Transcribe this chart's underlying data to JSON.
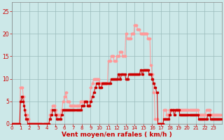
{
  "xlabel": "Vent moyen/en rafales ( km/h )",
  "bg_color": "#cce8e8",
  "grid_color": "#99bbbb",
  "ylim": [
    0,
    27
  ],
  "xlim": [
    0,
    287
  ],
  "yticks": [
    0,
    5,
    10,
    15,
    20,
    25
  ],
  "xtick_positions": [
    0,
    12,
    24,
    36,
    48,
    60,
    72,
    84,
    96,
    108,
    120,
    132,
    144,
    156,
    168,
    180,
    192,
    204,
    216,
    228,
    240,
    252,
    264,
    276
  ],
  "xtick_labels": [
    "0",
    "1",
    "2",
    "3",
    "4",
    "5",
    "6",
    "7",
    "8",
    "9",
    "10",
    "11",
    "12",
    "13",
    "14",
    "15",
    "16",
    "17",
    "18",
    "19",
    "20",
    "21",
    "22",
    "23"
  ],
  "moyen_color": "#cc0000",
  "rafales_color": "#ff9999",
  "moyen": [
    0,
    0,
    0,
    0,
    0,
    0,
    0,
    0,
    0,
    0,
    0,
    0,
    5,
    5,
    6,
    6,
    5,
    4,
    3,
    2,
    1,
    1,
    0,
    0,
    0,
    0,
    0,
    0,
    0,
    0,
    0,
    0,
    0,
    0,
    0,
    0,
    0,
    0,
    0,
    0,
    0,
    0,
    0,
    0,
    0,
    0,
    0,
    0,
    0,
    0,
    0,
    0,
    1,
    1,
    2,
    2,
    3,
    3,
    3,
    3,
    2,
    2,
    1,
    1,
    1,
    1,
    1,
    1,
    2,
    2,
    3,
    3,
    3,
    3,
    3,
    3,
    3,
    3,
    3,
    3,
    3,
    3,
    3,
    3,
    3,
    3,
    3,
    3,
    3,
    3,
    3,
    3,
    3,
    3,
    3,
    3,
    4,
    4,
    4,
    4,
    5,
    5,
    5,
    5,
    4,
    4,
    4,
    4,
    5,
    5,
    6,
    6,
    7,
    7,
    8,
    8,
    9,
    9,
    9,
    9,
    8,
    8,
    8,
    8,
    9,
    9,
    9,
    9,
    9,
    9,
    9,
    9,
    9,
    9,
    9,
    9,
    10,
    10,
    10,
    10,
    10,
    10,
    10,
    10,
    10,
    10,
    11,
    11,
    10,
    10,
    11,
    11,
    11,
    11,
    11,
    11,
    10,
    10,
    10,
    10,
    11,
    11,
    11,
    11,
    11,
    11,
    11,
    11,
    11,
    11,
    11,
    11,
    11,
    11,
    11,
    11,
    12,
    12,
    11,
    11,
    12,
    12,
    12,
    12,
    12,
    12,
    12,
    12,
    11,
    11,
    11,
    11,
    10,
    10,
    9,
    9,
    8,
    8,
    7,
    7,
    0,
    0,
    0,
    0,
    0,
    0,
    0,
    0,
    1,
    1,
    1,
    1,
    1,
    1,
    1,
    1,
    2,
    2,
    3,
    3,
    3,
    3,
    2,
    2,
    3,
    3,
    3,
    3,
    3,
    3,
    2,
    2,
    2,
    2,
    2,
    2,
    2,
    2,
    2,
    2,
    2,
    2,
    2,
    2,
    2,
    2,
    2,
    2,
    2,
    2,
    2,
    2,
    2,
    2,
    2,
    2,
    1,
    1,
    1,
    1,
    1,
    1,
    1,
    1,
    1,
    1,
    1,
    1,
    2,
    2,
    2,
    2,
    1,
    1,
    1,
    1,
    1,
    1,
    1,
    1,
    1,
    1,
    1,
    1,
    1,
    1,
    1,
    1
  ],
  "rafales": [
    0,
    0,
    0,
    0,
    0,
    0,
    0,
    0,
    0,
    0,
    0,
    0,
    8,
    8,
    8,
    8,
    6,
    6,
    3,
    3,
    2,
    2,
    1,
    1,
    0,
    0,
    0,
    0,
    0,
    0,
    0,
    0,
    0,
    0,
    0,
    0,
    0,
    0,
    0,
    0,
    0,
    0,
    0,
    0,
    0,
    0,
    0,
    0,
    0,
    0,
    0,
    0,
    2,
    2,
    3,
    3,
    4,
    4,
    4,
    4,
    3,
    3,
    2,
    2,
    2,
    2,
    2,
    2,
    3,
    3,
    5,
    5,
    6,
    6,
    7,
    7,
    5,
    5,
    5,
    5,
    4,
    4,
    4,
    4,
    4,
    4,
    4,
    4,
    4,
    4,
    4,
    4,
    4,
    4,
    5,
    5,
    5,
    5,
    5,
    5,
    5,
    5,
    5,
    5,
    4,
    4,
    4,
    4,
    8,
    8,
    9,
    9,
    10,
    10,
    10,
    10,
    10,
    10,
    10,
    10,
    9,
    9,
    9,
    9,
    9,
    9,
    9,
    9,
    9,
    9,
    9,
    9,
    14,
    14,
    14,
    14,
    15,
    15,
    15,
    15,
    14,
    14,
    14,
    14,
    15,
    15,
    15,
    15,
    16,
    16,
    16,
    16,
    15,
    15,
    15,
    15,
    20,
    20,
    19,
    19,
    19,
    19,
    19,
    19,
    20,
    20,
    20,
    20,
    22,
    22,
    22,
    22,
    21,
    21,
    21,
    21,
    20,
    20,
    20,
    20,
    20,
    20,
    20,
    20,
    20,
    20,
    19,
    19,
    19,
    19,
    13,
    13,
    11,
    11,
    7,
    7,
    1,
    1,
    1,
    1,
    0,
    0,
    0,
    0,
    0,
    0,
    0,
    0,
    3,
    3,
    3,
    3,
    2,
    2,
    2,
    2,
    3,
    3,
    3,
    3,
    3,
    3,
    3,
    3,
    3,
    3,
    3,
    3,
    3,
    3,
    3,
    3,
    3,
    3,
    3,
    3,
    3,
    3,
    3,
    3,
    3,
    3,
    3,
    3,
    3,
    3,
    3,
    3,
    3,
    3,
    3,
    3,
    3,
    3,
    3,
    3,
    2,
    2,
    2,
    2,
    2,
    2,
    2,
    2,
    2,
    2,
    3,
    3,
    3,
    3,
    3,
    3,
    2,
    2,
    2,
    2,
    2,
    2,
    2,
    2,
    2,
    2,
    2,
    2,
    2,
    2,
    2,
    2
  ]
}
